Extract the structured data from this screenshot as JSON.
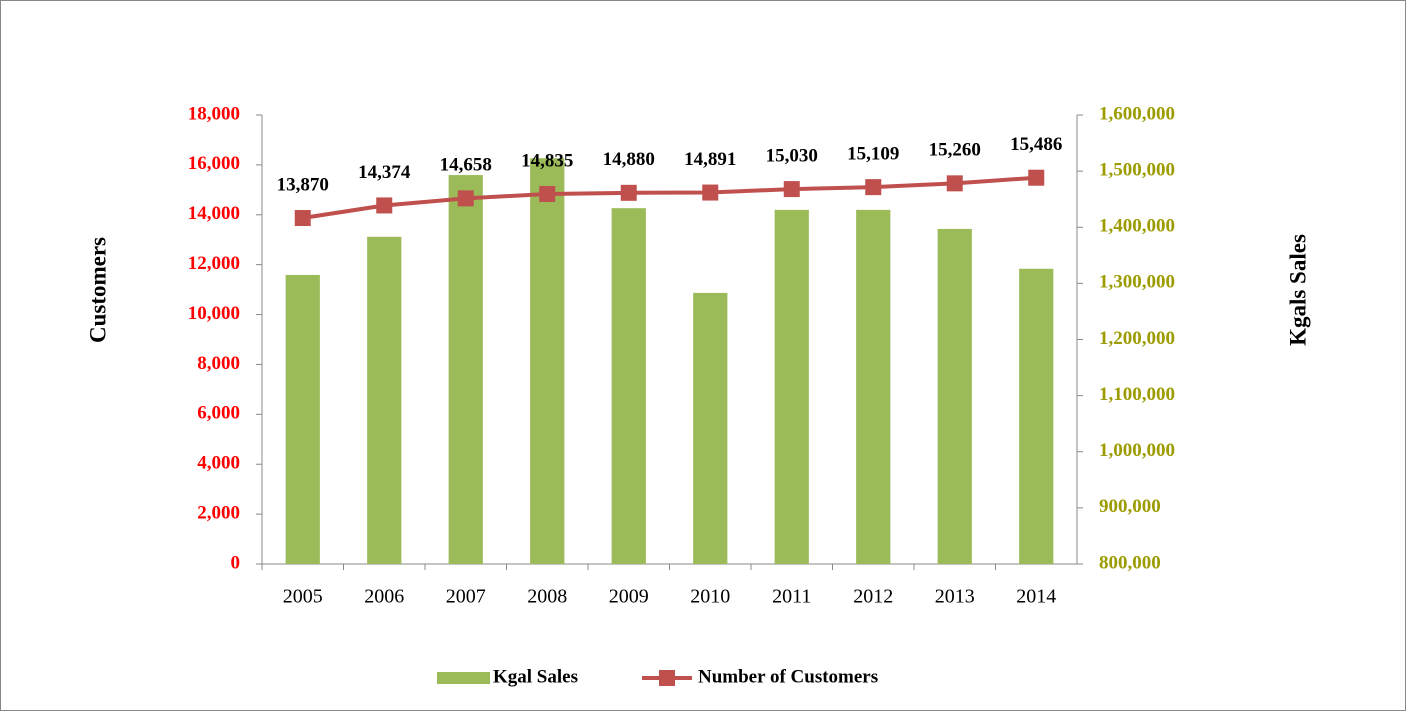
{
  "chart_data": {
    "type": "bar",
    "categories": [
      "2005",
      "2006",
      "2007",
      "2008",
      "2009",
      "2010",
      "2011",
      "2012",
      "2013",
      "2014"
    ],
    "series": [
      {
        "name": "Kgal Sales",
        "type": "bar",
        "axis": "y2",
        "color": "#9bbb59",
        "values": [
          1315000,
          1383000,
          1493000,
          1523000,
          1434000,
          1283000,
          1431000,
          1431000,
          1397000,
          1326000
        ]
      },
      {
        "name": "Number of Customers",
        "type": "line",
        "axis": "y",
        "color": "#c0504d",
        "values": [
          13870,
          14374,
          14658,
          14835,
          14880,
          14891,
          15030,
          15109,
          15260,
          15486
        ],
        "value_labels": [
          "13,870",
          "14,374",
          "14,658",
          "14,835",
          "14,880",
          "14,891",
          "15,030",
          "15,109",
          "15,260",
          "15,486"
        ]
      }
    ],
    "ylabel": "Customers",
    "y2label": "Kgals Sales",
    "ylim": [
      0,
      18000
    ],
    "yticks": [
      0,
      {
        "value": 2000,
        "label": "2,000"
      },
      {
        "value": 4000,
        "label": "4,000"
      },
      {
        "value": 6000,
        "label": "6,000"
      },
      {
        "value": 8000,
        "label": "8,000"
      },
      {
        "value": 10000,
        "label": "10,000"
      },
      {
        "value": 12000,
        "label": "12,000"
      },
      {
        "value": 14000,
        "label": "14,000"
      },
      {
        "value": 16000,
        "label": "16,000"
      },
      {
        "value": 18000,
        "label": "18,000"
      }
    ],
    "ytick_color": "#ff0000",
    "y2lim": [
      800000,
      1600000
    ],
    "y2ticks": [
      {
        "value": 800000,
        "label": "800,000"
      },
      {
        "value": 900000,
        "label": "900,000"
      },
      {
        "value": 1000000,
        "label": "1,000,000"
      },
      {
        "value": 1100000,
        "label": "1,100,000"
      },
      {
        "value": 1200000,
        "label": "1,200,000"
      },
      {
        "value": 1300000,
        "label": "1,300,000"
      },
      {
        "value": 1400000,
        "label": "1,400,000"
      },
      {
        "value": 1500000,
        "label": "1,500,000"
      },
      {
        "value": 1600000,
        "label": "1,600,000"
      }
    ],
    "y2tick_color": "#9c9c00",
    "grid": false,
    "legend": "bottom"
  }
}
